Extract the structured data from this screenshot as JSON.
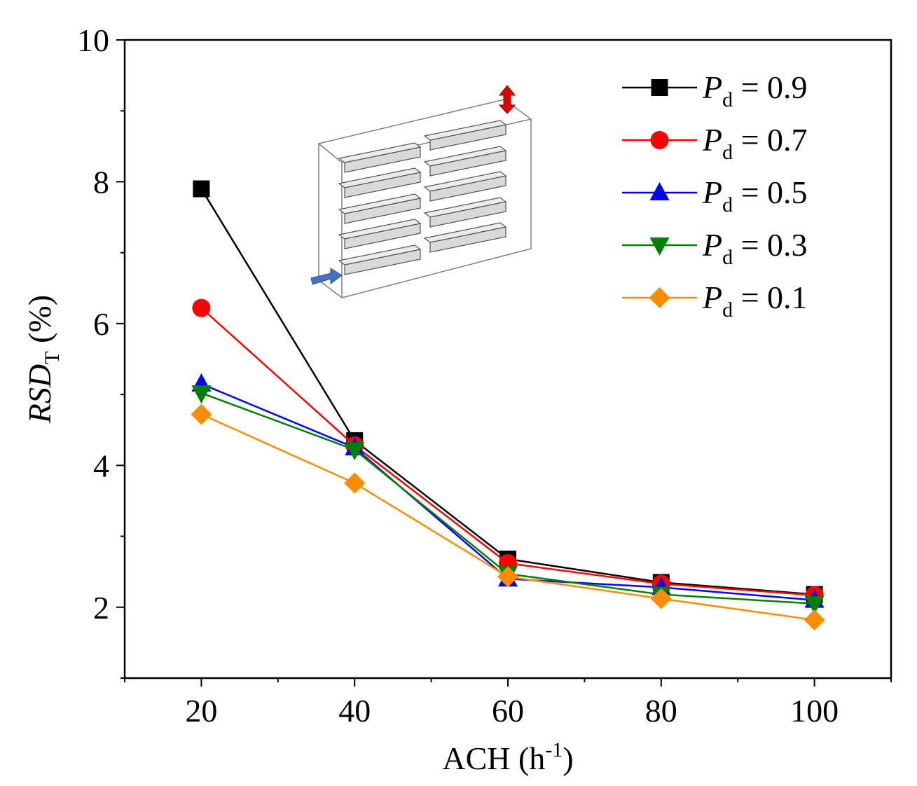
{
  "chart_data": {
    "type": "line",
    "title": "",
    "xlabel": {
      "main": "ACH (h",
      "sup": "-1",
      "close": ")"
    },
    "ylabel": {
      "main": "RSD",
      "sub": "T",
      "rest": " (%)"
    },
    "x": [
      20,
      40,
      60,
      80,
      100
    ],
    "xlim": [
      10,
      110
    ],
    "ylim": [
      1,
      10
    ],
    "xticks": [
      "20",
      "40",
      "60",
      "80",
      "100"
    ],
    "yticks": [
      "2",
      "4",
      "6",
      "8",
      "10"
    ],
    "grid": false,
    "legend_position": "top-right",
    "series": [
      {
        "name_main": "P",
        "name_sub": "d",
        "name_rest": " = 0.9",
        "color": "#000000",
        "marker": "square",
        "values": [
          7.9,
          4.35,
          2.68,
          2.35,
          2.18
        ]
      },
      {
        "name_main": "P",
        "name_sub": "d",
        "name_rest": " = 0.7",
        "color": "#ff0000",
        "marker": "circle",
        "values": [
          6.22,
          4.28,
          2.62,
          2.33,
          2.17
        ]
      },
      {
        "name_main": "P",
        "name_sub": "d",
        "name_rest": " = 0.5",
        "color": "#0000ff",
        "marker": "triangle-up",
        "values": [
          5.15,
          4.25,
          2.4,
          2.28,
          2.1
        ]
      },
      {
        "name_main": "P",
        "name_sub": "d",
        "name_rest": " = 0.3",
        "color": "#008000",
        "marker": "triangle-down",
        "values": [
          5.02,
          4.22,
          2.47,
          2.18,
          2.05
        ]
      },
      {
        "name_main": "P",
        "name_sub": "d",
        "name_rest": " = 0.1",
        "color": "#ff8c00",
        "marker": "diamond",
        "values": [
          4.72,
          3.75,
          2.43,
          2.12,
          1.82
        ]
      }
    ]
  }
}
